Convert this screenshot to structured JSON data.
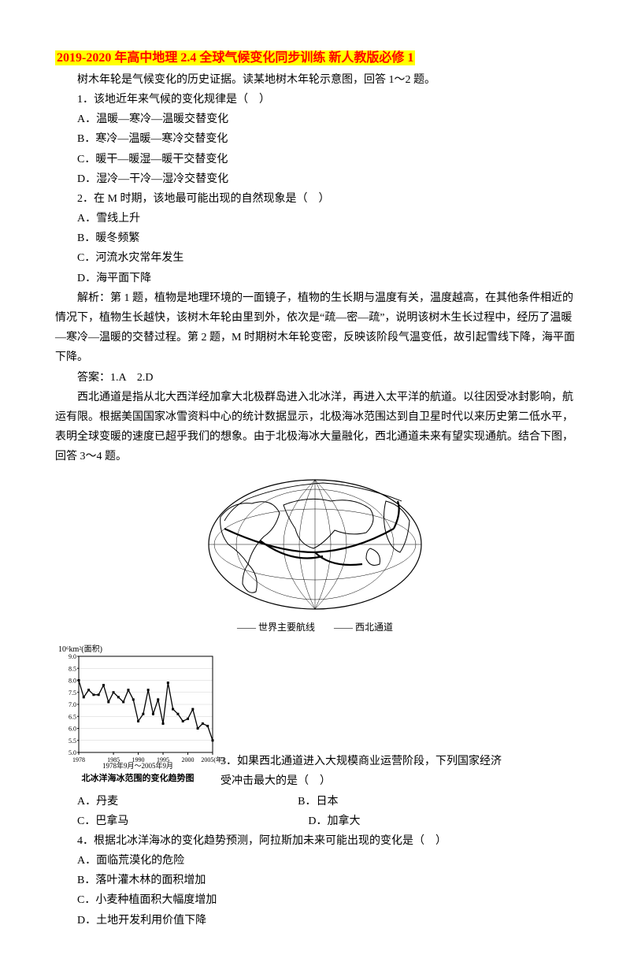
{
  "title": "2019-2020 年高中地理 2.4 全球气候变化同步训练 新人教版必修 1",
  "intro1": "树木年轮是气候变化的历史证据。读某地树木年轮示意图，回答 1～2 题。",
  "q1": {
    "stem": "1．该地近年来气候的变化规律是（　）",
    "A": "A．温暖—寒冷—温暖交替变化",
    "B": "B．寒冷—温暖—寒冷交替变化",
    "C": "C．暖干—暖湿—暖干交替变化",
    "D": "D．湿冷—干冷—湿冷交替变化"
  },
  "q2": {
    "stem": "2．在 M 时期，该地最可能出现的自然现象是（　）",
    "A": "A．雪线上升",
    "B": "B．暖冬频繁",
    "C": "C．河流水灾常年发生",
    "D": "D．海平面下降"
  },
  "explain12": "解析：第 1 题，植物是地理环境的一面镜子，植物的生长期与温度有关，温度越高，在其他条件相近的情况下，植物生长越快，该树木年轮由里到外，依次是“疏—密—疏”，说明该树木生长过程中，经历了温暖—寒冷—温暖的交替过程。第 2 题，M 时期树木年轮变密，反映该阶段气温变低，故引起雪线下降，海平面下降。",
  "ans12": "答案：1.A　2.D",
  "passage2": "西北通道是指从北大西洋经加拿大北极群岛进入北冰洋，再进入太平洋的航道。以往因受冰封影响，航运有限。根据美国国家冰雪资料中心的统计数据显示，北极海冰范围达到自卫星时代以来历史第二低水平，表明全球变暖的速度已超乎我们的想象。由于北极海冰大量融化，西北通道未来有望实现通航。结合下图，回答 3～4 题。",
  "mapLegend": {
    "left": "—— 世界主要航线",
    "right": "—— 西北通道"
  },
  "chart": {
    "y_unit": "10⁶km²(面积)",
    "y_ticks": [
      "5.0",
      "5.5",
      "6.0",
      "6.5",
      "7.0",
      "7.5",
      "8.0",
      "8.5",
      "9.0"
    ],
    "x_ticks": [
      "1978",
      "1985",
      "1990",
      "1995",
      "2000",
      "2005(年)"
    ],
    "x_caption": "1978年9月～2005年9月",
    "title": "北冰洋海冰范围的变化趋势图",
    "values": [
      8.0,
      7.3,
      7.6,
      7.4,
      7.4,
      7.8,
      7.1,
      7.5,
      7.3,
      7.1,
      7.6,
      7.2,
      6.3,
      6.6,
      7.6,
      6.6,
      7.2,
      6.2,
      7.9,
      6.8,
      6.6,
      6.3,
      6.4,
      6.8,
      6.0,
      6.2,
      6.1,
      5.5
    ],
    "line_color": "#000000",
    "bg_color": "#ffffff",
    "grid_color": "#d0d0d0",
    "ymin": 5.0,
    "ymax": 9.0
  },
  "q3": {
    "stem_a": "3．如果西北通道进入大规模商业运营阶段，下列国家经济",
    "stem_b": "受冲击最大的是（　）",
    "A": "A．丹麦",
    "B": "B．日本",
    "C": "C．巴拿马",
    "D": "D．加拿大"
  },
  "q4": {
    "stem": "4．根据北冰洋海冰的变化趋势预测，阿拉斯加未来可能出现的变化是（　）",
    "A": "A．面临荒漠化的危险",
    "B": "B．落叶灌木林的面积增加",
    "C": "C．小麦种植面积大幅度增加",
    "D": "D．土地开发利用价值下降"
  }
}
